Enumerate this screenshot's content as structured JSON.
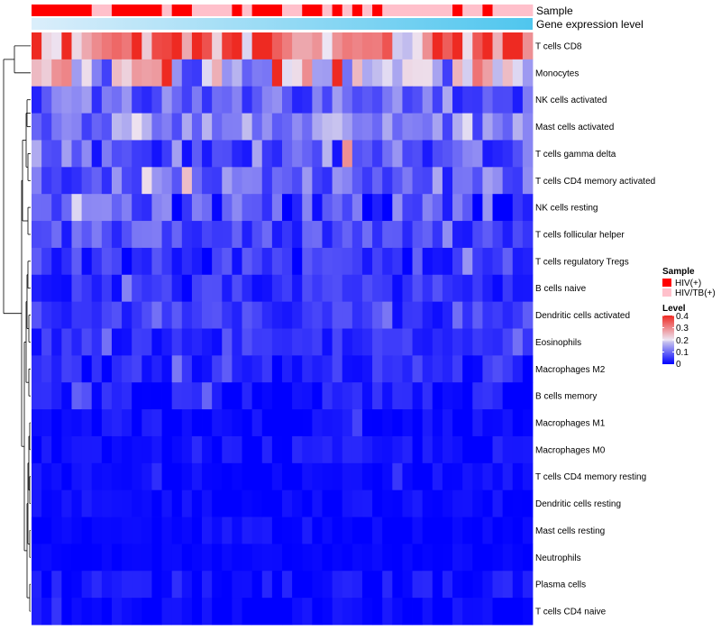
{
  "chart_data": {
    "type": "heatmap",
    "title": "",
    "annotation_labels": {
      "sample": "Sample",
      "gene": "Gene expression level"
    },
    "rows": [
      "T cells CD8",
      "Monocytes",
      "NK cells activated",
      "Mast cells activated",
      "T cells gamma delta",
      "T cells CD4 memory activated",
      "NK cells resting",
      "T cells follicular helper",
      "T cells regulatory  Tregs",
      "B cells naive",
      "Dendritic cells activated",
      "Eosinophils",
      "Macrophages M2",
      "B cells memory",
      "Macrophages M1",
      "Macrophages M0",
      "T cells CD4 memory resting",
      "Dendritic cells resting",
      "Mast cells resting",
      "Neutrophils",
      "Plasma cells",
      "T cells CD4 naive"
    ],
    "n_columns": 50,
    "sample_groups": [
      "HIV(+)",
      "HIV(+)",
      "HIV(+)",
      "HIV(+)",
      "HIV(+)",
      "HIV(+)",
      "HIV/TB(+)",
      "HIV/TB(+)",
      "HIV(+)",
      "HIV(+)",
      "HIV(+)",
      "HIV(+)",
      "HIV(+)",
      "HIV/TB(+)",
      "HIV(+)",
      "HIV(+)",
      "HIV/TB(+)",
      "HIV/TB(+)",
      "HIV/TB(+)",
      "HIV/TB(+)",
      "HIV(+)",
      "HIV/TB(+)",
      "HIV(+)",
      "HIV(+)",
      "HIV(+)",
      "HIV/TB(+)",
      "HIV/TB(+)",
      "HIV(+)",
      "HIV(+)",
      "HIV/TB(+)",
      "HIV(+)",
      "HIV/TB(+)",
      "HIV(+)",
      "HIV/TB(+)",
      "HIV(+)",
      "HIV/TB(+)",
      "HIV/TB(+)",
      "HIV/TB(+)",
      "HIV/TB(+)",
      "HIV/TB(+)",
      "HIV/TB(+)",
      "HIV/TB(+)",
      "HIV(+)",
      "HIV/TB(+)",
      "HIV/TB(+)",
      "HIV(+)",
      "HIV/TB(+)",
      "HIV/TB(+)",
      "HIV/TB(+)",
      "HIV/TB(+)"
    ],
    "row_means": [
      0.32,
      0.18,
      0.09,
      0.12,
      0.09,
      0.09,
      0.06,
      0.07,
      0.04,
      0.04,
      0.05,
      0.04,
      0.03,
      0.02,
      0.01,
      0.015,
      0.008,
      0.008,
      0.004,
      0.004,
      0.01,
      0.006
    ],
    "row_spread": [
      0.09,
      0.08,
      0.04,
      0.04,
      0.05,
      0.04,
      0.05,
      0.03,
      0.03,
      0.025,
      0.025,
      0.02,
      0.025,
      0.02,
      0.015,
      0.015,
      0.012,
      0.012,
      0.006,
      0.005,
      0.02,
      0.012
    ],
    "color_scale": {
      "min": 0,
      "max": 0.4,
      "stops": [
        [
          0,
          "#0000ff"
        ],
        [
          0.18,
          "#c4bfee"
        ],
        [
          0.2,
          "#ede6f4"
        ],
        [
          0.4,
          "#ee2a22"
        ]
      ]
    },
    "legend": {
      "sample_title": "Sample",
      "sample_entries": [
        {
          "label": "HIV(+)",
          "color": "#ff0000"
        },
        {
          "label": "HIV/TB(+)",
          "color": "#ffc0cb"
        }
      ],
      "level_title": "Level",
      "level_ticks": [
        "0.4",
        "0.3",
        "0.2",
        "0.1",
        "0"
      ],
      "placement": "right"
    },
    "gene_bar_colors": [
      "#dbeefb",
      "#4fc6ee"
    ]
  }
}
